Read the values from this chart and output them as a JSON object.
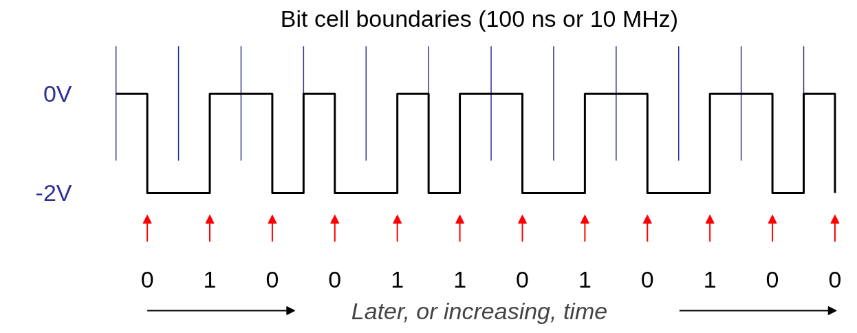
{
  "chart_data": {
    "type": "step",
    "title": "Bit cell boundaries (100 ns or 10 MHz)",
    "xlabel": "Later, or increasing, time",
    "categories": [
      null,
      "0",
      null,
      "1",
      null,
      "0",
      null,
      "0",
      null,
      "1",
      null,
      "1",
      null,
      "0",
      null,
      "1",
      null,
      "0",
      null,
      "1",
      null,
      "0",
      null,
      "0"
    ],
    "values": [
      0,
      -2,
      -2,
      0,
      0,
      -2,
      0,
      -2,
      -2,
      0,
      -2,
      0,
      0,
      -2,
      -2,
      0,
      0,
      -2,
      -2,
      0,
      0,
      -2,
      0,
      -2
    ],
    "color": "#000000",
    "yticks": [
      {
        "value": 0,
        "label": "0V"
      },
      {
        "value": -2,
        "label": "-2V"
      }
    ],
    "ylim": [
      -2,
      0
    ],
    "grid": "x"
  }
}
